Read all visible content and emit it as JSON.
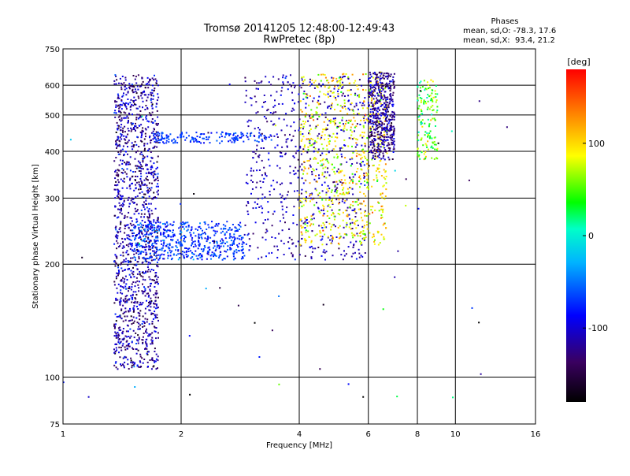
{
  "chart_data": {
    "type": "scatter",
    "title": "Tromsø 20141205 12:48:00-12:49:43",
    "subtitle": "RwPretec (8p)",
    "xlabel": "Frequency [MHz]",
    "ylabel": "Stationary phase Virtual Height [km]",
    "x_scale": "log",
    "y_scale": "log",
    "xlim": [
      1,
      16
    ],
    "ylim": [
      75,
      750
    ],
    "x_ticks": [
      1,
      2,
      4,
      6,
      8,
      10,
      16
    ],
    "y_ticks": [
      75,
      100,
      200,
      300,
      400,
      500,
      600,
      750
    ],
    "grid": true,
    "stats": {
      "heading": "Phases",
      "line_o": "mean, sd,O: -78.3, 17.6",
      "line_x": "mean, sd,X:  93.4, 21.2"
    },
    "colorbar": {
      "label": "[deg]",
      "ticks": [
        100,
        0,
        -100
      ],
      "range": [
        -180,
        180
      ],
      "colormap": "rainbow",
      "colors": [
        "#000000",
        "#3a0060",
        "#0000ff",
        "#00b4ff",
        "#00ffc8",
        "#00ff00",
        "#ffff00",
        "#ff8000",
        "#ff0000"
      ]
    },
    "series": [
      {
        "name": "",
        "fmin": 1.35,
        "fmax": 1.75,
        "hmin": 105,
        "hmax": 640,
        "phase": -115,
        "spread": 25,
        "count": 1400
      },
      {
        "name": "",
        "fmin": 1.5,
        "fmax": 2.9,
        "hmin": 205,
        "hmax": 260,
        "phase": -70,
        "spread": 15,
        "count": 550
      },
      {
        "name": "",
        "fmin": 2.9,
        "fmax": 5.9,
        "hmin": 205,
        "hmax": 640,
        "phase": -110,
        "spread": 15,
        "count": 650
      },
      {
        "name": "",
        "fmin": 1.7,
        "fmax": 3.3,
        "hmin": 420,
        "hmax": 450,
        "phase": -70,
        "spread": 10,
        "count": 160
      },
      {
        "name": "",
        "fmin": 4.0,
        "fmax": 6.7,
        "hmin": 225,
        "hmax": 650,
        "phase": 90,
        "spread": 25,
        "count": 700
      },
      {
        "name": "",
        "fmin": 6.0,
        "fmax": 7.0,
        "hmin": 380,
        "hmax": 650,
        "phase": -120,
        "spread": 20,
        "count": 500
      },
      {
        "name": "",
        "fmin": 8.0,
        "fmax": 9.0,
        "hmin": 380,
        "hmax": 620,
        "phase": 50,
        "spread": 30,
        "count": 150
      },
      {
        "name": "",
        "fmin": 1.0,
        "fmax": 14.5,
        "hmin": 80,
        "hmax": 650,
        "phase": -90,
        "spread": 90,
        "count": 60
      }
    ]
  }
}
